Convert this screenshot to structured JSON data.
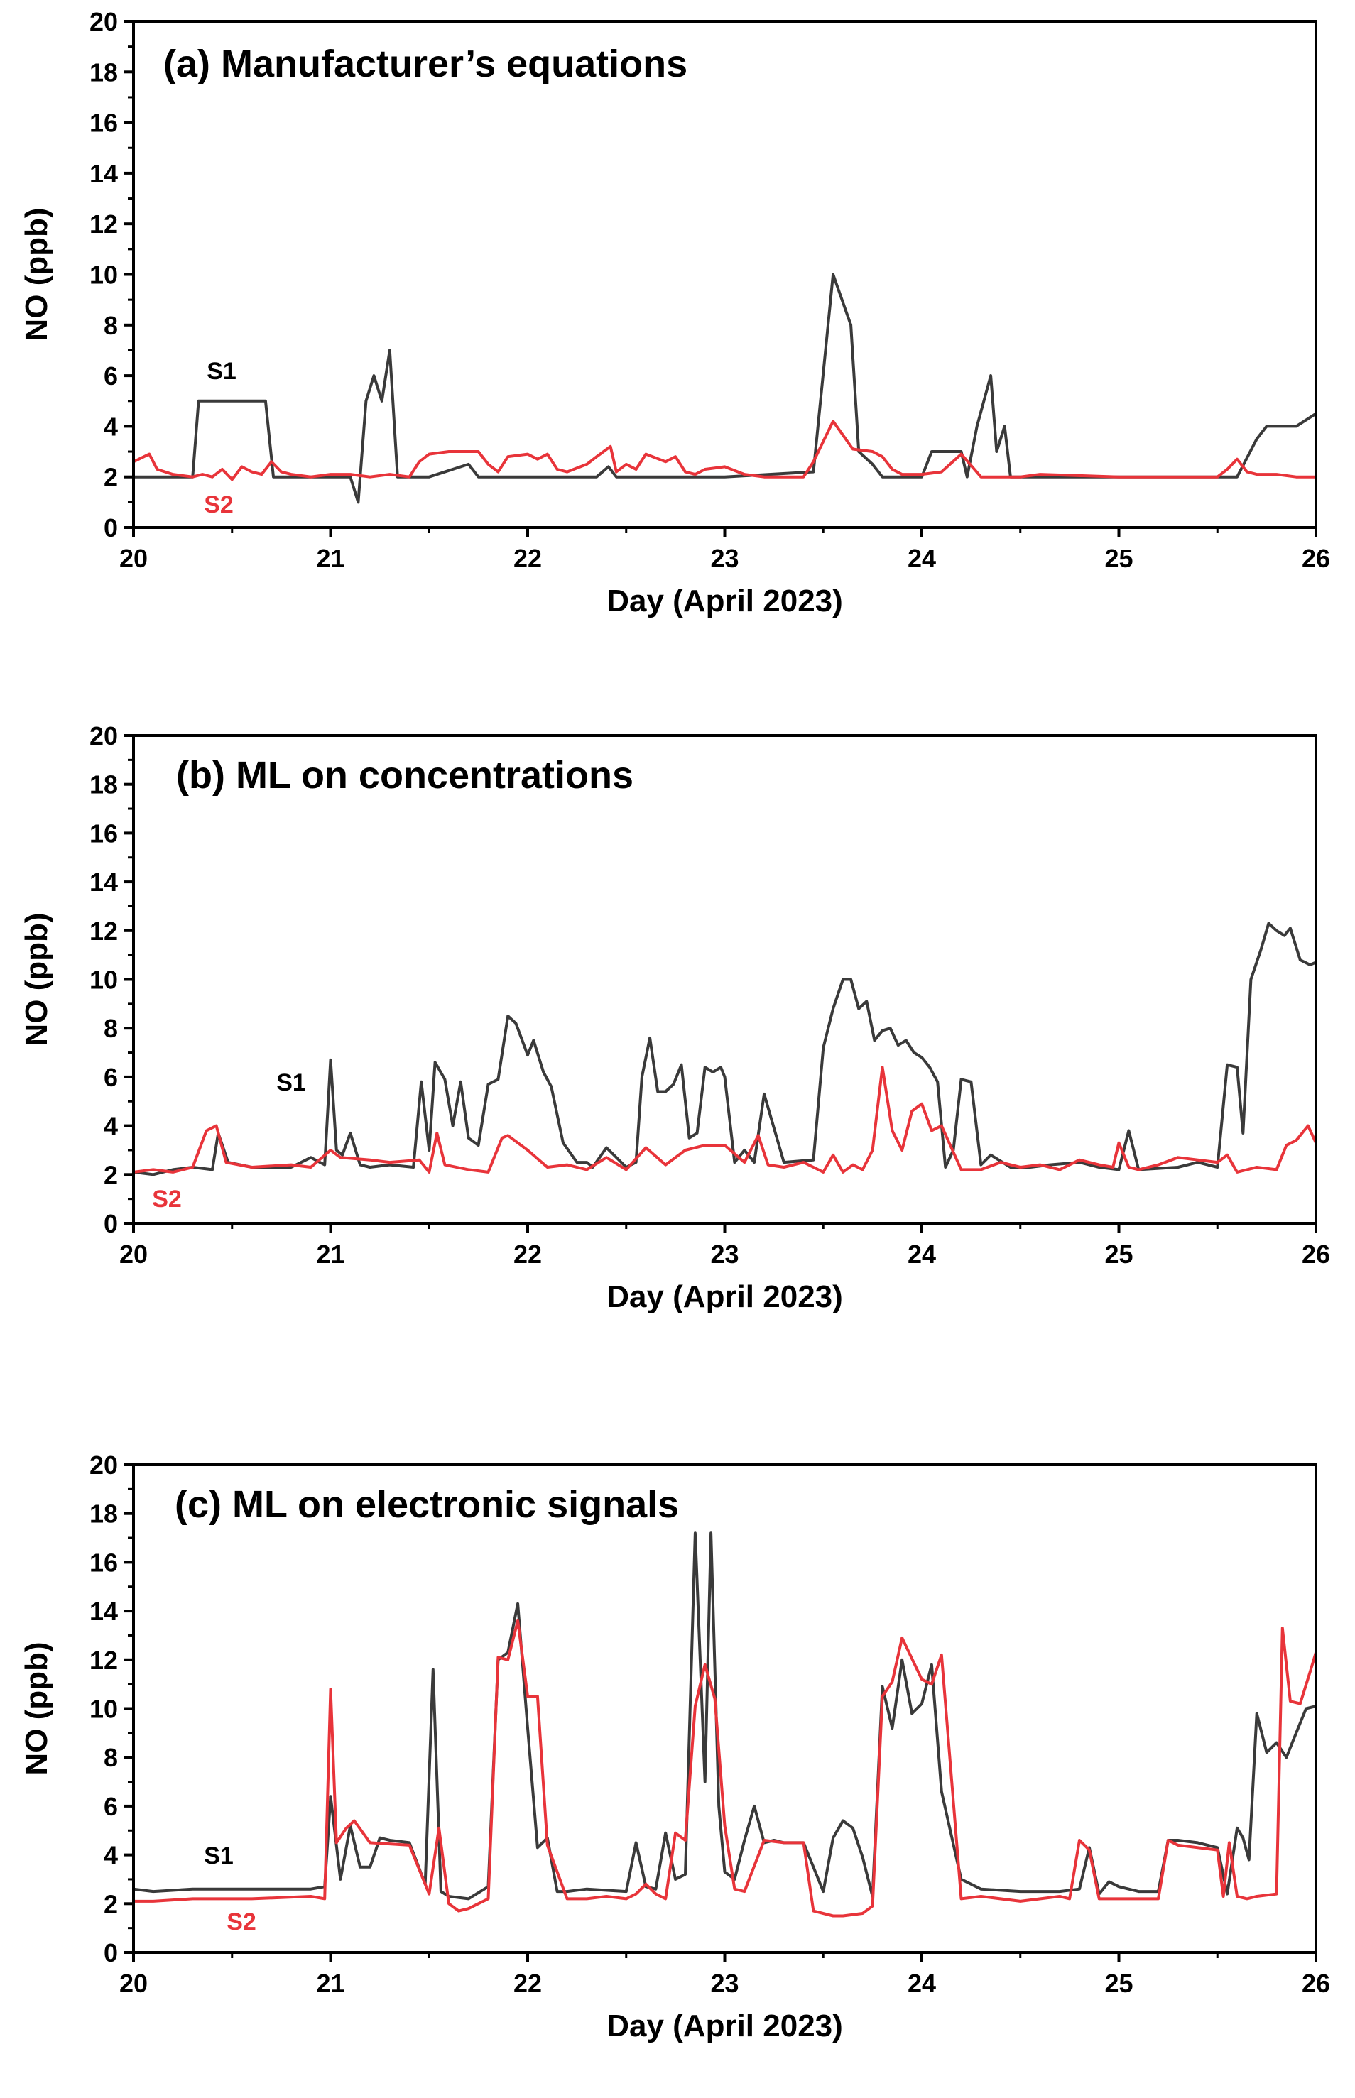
{
  "colors": {
    "s1": "#3a3a3a",
    "s2": "#e8343a"
  },
  "chart_data": [
    {
      "type": "line",
      "title": "(a) Manufacturer’s equations",
      "xlabel": "Day (April 2023)",
      "ylabel": "NO (ppb)",
      "xlim": [
        20,
        26
      ],
      "ylim": [
        0,
        20
      ],
      "xticks": [
        "20",
        "21",
        "22",
        "23",
        "24",
        "25",
        "26"
      ],
      "yticks": [
        "0",
        "2",
        "4",
        "6",
        "8",
        "10",
        "12",
        "14",
        "16",
        "18",
        "20"
      ],
      "series": [
        {
          "name": "S1",
          "x": [
            20,
            20.3,
            20.33,
            20.67,
            20.71,
            21.0,
            21.1,
            21.14,
            21.18,
            21.22,
            21.26,
            21.3,
            21.34,
            21.5,
            21.7,
            21.75,
            22.0,
            22.35,
            22.41,
            22.45,
            23.0,
            23.45,
            23.55,
            23.64,
            23.68,
            23.75,
            23.8,
            24.0,
            24.05,
            24.2,
            24.23,
            24.28,
            24.35,
            24.38,
            24.42,
            24.45,
            25.0,
            25.6,
            25.7,
            25.75,
            25.9,
            26.0
          ],
          "y": [
            2,
            2,
            5,
            5,
            2,
            2,
            2,
            1,
            5,
            6,
            5,
            7,
            2,
            2,
            2.5,
            2,
            2,
            2,
            2.4,
            2,
            2,
            2.2,
            10,
            8,
            3,
            2.5,
            2,
            2,
            3,
            3,
            2,
            4,
            6,
            3,
            4,
            2,
            2,
            2,
            3.5,
            4,
            4,
            4.5
          ]
        },
        {
          "name": "S2",
          "x": [
            20,
            20.08,
            20.12,
            20.2,
            20.3,
            20.35,
            20.4,
            20.45,
            20.5,
            20.55,
            20.6,
            20.65,
            20.7,
            20.75,
            20.8,
            20.9,
            21.0,
            21.1,
            21.2,
            21.3,
            21.4,
            21.45,
            21.5,
            21.6,
            21.75,
            21.8,
            21.85,
            21.9,
            22.0,
            22.05,
            22.1,
            22.15,
            22.2,
            22.3,
            22.35,
            22.42,
            22.45,
            22.5,
            22.55,
            22.6,
            22.7,
            22.75,
            22.8,
            22.85,
            22.9,
            23.0,
            23.1,
            23.2,
            23.4,
            23.45,
            23.55,
            23.65,
            23.75,
            23.8,
            23.85,
            23.9,
            24.0,
            24.1,
            24.2,
            24.3,
            24.5,
            24.6,
            25.0,
            25.5,
            25.55,
            25.6,
            25.65,
            25.7,
            25.8,
            25.9,
            26.0
          ],
          "y": [
            2.6,
            2.9,
            2.3,
            2.1,
            2.0,
            2.1,
            2.0,
            2.3,
            1.9,
            2.4,
            2.2,
            2.1,
            2.6,
            2.2,
            2.1,
            2.0,
            2.1,
            2.1,
            2.0,
            2.1,
            2.0,
            2.6,
            2.9,
            3.0,
            3.0,
            2.5,
            2.2,
            2.8,
            2.9,
            2.7,
            2.9,
            2.3,
            2.2,
            2.5,
            2.8,
            3.2,
            2.2,
            2.5,
            2.3,
            2.9,
            2.6,
            2.8,
            2.2,
            2.1,
            2.3,
            2.4,
            2.1,
            2.0,
            2.0,
            2.6,
            4.2,
            3.1,
            3.0,
            2.8,
            2.3,
            2.1,
            2.1,
            2.2,
            2.9,
            2.0,
            2.0,
            2.1,
            2.0,
            2.0,
            2.3,
            2.7,
            2.2,
            2.1,
            2.1,
            2.0,
            2.0
          ]
        }
      ],
      "annotations": [
        "S1",
        "S2"
      ]
    },
    {
      "type": "line",
      "title": "(b) ML on concentrations",
      "xlabel": "Day (April 2023)",
      "ylabel": "NO (ppb)",
      "xlim": [
        20,
        26
      ],
      "ylim": [
        0,
        20
      ],
      "xticks": [
        "20",
        "21",
        "22",
        "23",
        "24",
        "25",
        "26"
      ],
      "yticks": [
        "0",
        "2",
        "4",
        "6",
        "8",
        "10",
        "12",
        "14",
        "16",
        "18",
        "20"
      ],
      "series": [
        {
          "name": "S1",
          "x": [
            20,
            20.1,
            20.2,
            20.3,
            20.4,
            20.43,
            20.48,
            20.6,
            20.8,
            20.9,
            20.97,
            21.0,
            21.03,
            21.06,
            21.1,
            21.15,
            21.2,
            21.3,
            21.42,
            21.46,
            21.5,
            21.53,
            21.58,
            21.62,
            21.66,
            21.7,
            21.75,
            21.8,
            21.85,
            21.9,
            21.94,
            22.0,
            22.03,
            22.08,
            22.12,
            22.18,
            22.25,
            22.3,
            22.33,
            22.4,
            22.5,
            22.55,
            22.58,
            22.62,
            22.66,
            22.7,
            22.74,
            22.78,
            22.82,
            22.86,
            22.9,
            22.94,
            22.98,
            23.0,
            23.05,
            23.1,
            23.15,
            23.2,
            23.3,
            23.45,
            23.5,
            23.55,
            23.6,
            23.64,
            23.68,
            23.72,
            23.76,
            23.8,
            23.84,
            23.88,
            23.92,
            23.96,
            24.0,
            24.04,
            24.08,
            24.12,
            24.16,
            24.2,
            24.25,
            24.3,
            24.35,
            24.45,
            24.55,
            24.65,
            24.8,
            24.9,
            25.0,
            25.05,
            25.1,
            25.3,
            25.4,
            25.5,
            25.55,
            25.6,
            25.63,
            25.67,
            25.72,
            25.76,
            25.8,
            25.84,
            25.87,
            25.92,
            25.97,
            26.0
          ],
          "y": [
            2.1,
            2.0,
            2.2,
            2.3,
            2.2,
            3.7,
            2.5,
            2.3,
            2.3,
            2.7,
            2.4,
            6.7,
            3.0,
            2.8,
            3.7,
            2.4,
            2.3,
            2.4,
            2.3,
            5.8,
            3.0,
            6.6,
            5.9,
            4.0,
            5.8,
            3.5,
            3.2,
            5.7,
            5.9,
            8.5,
            8.2,
            6.9,
            7.5,
            6.2,
            5.6,
            3.3,
            2.5,
            2.5,
            2.3,
            3.1,
            2.3,
            2.5,
            6.0,
            7.6,
            5.4,
            5.4,
            5.7,
            6.5,
            3.5,
            3.7,
            6.4,
            6.2,
            6.4,
            6.0,
            2.5,
            3.0,
            2.5,
            5.3,
            2.5,
            2.6,
            7.2,
            8.8,
            10.0,
            10.0,
            8.8,
            9.1,
            7.5,
            7.9,
            8.0,
            7.3,
            7.5,
            7.0,
            6.8,
            6.4,
            5.8,
            2.3,
            3.0,
            5.9,
            5.8,
            2.4,
            2.8,
            2.3,
            2.3,
            2.4,
            2.5,
            2.3,
            2.2,
            3.8,
            2.2,
            2.3,
            2.5,
            2.3,
            6.5,
            6.4,
            3.7,
            10.0,
            11.2,
            12.3,
            12.0,
            11.8,
            12.1,
            10.8,
            10.6,
            10.7
          ]
        },
        {
          "name": "S2",
          "x": [
            20,
            20.1,
            20.2,
            20.3,
            20.37,
            20.42,
            20.47,
            20.6,
            20.8,
            20.9,
            21.0,
            21.05,
            21.2,
            21.3,
            21.45,
            21.5,
            21.54,
            21.58,
            21.7,
            21.8,
            21.87,
            21.9,
            22.0,
            22.1,
            22.2,
            22.3,
            22.4,
            22.5,
            22.6,
            22.7,
            22.8,
            22.9,
            23.0,
            23.1,
            23.17,
            23.22,
            23.3,
            23.4,
            23.5,
            23.55,
            23.6,
            23.65,
            23.7,
            23.75,
            23.8,
            23.85,
            23.9,
            23.95,
            24.0,
            24.05,
            24.1,
            24.2,
            24.3,
            24.4,
            24.5,
            24.6,
            24.7,
            24.8,
            24.9,
            24.97,
            25.0,
            25.05,
            25.1,
            25.2,
            25.3,
            25.4,
            25.5,
            25.55,
            25.6,
            25.7,
            25.8,
            25.85,
            25.9,
            25.96,
            26.0
          ],
          "y": [
            2.1,
            2.2,
            2.1,
            2.3,
            3.8,
            4.0,
            2.5,
            2.3,
            2.4,
            2.3,
            3.0,
            2.7,
            2.6,
            2.5,
            2.6,
            2.1,
            3.7,
            2.4,
            2.2,
            2.1,
            3.5,
            3.6,
            3.0,
            2.3,
            2.4,
            2.2,
            2.7,
            2.2,
            3.1,
            2.4,
            3.0,
            3.2,
            3.2,
            2.5,
            3.6,
            2.4,
            2.3,
            2.5,
            2.1,
            2.8,
            2.1,
            2.4,
            2.2,
            3.0,
            6.4,
            3.8,
            3.0,
            4.6,
            4.9,
            3.8,
            4.0,
            2.2,
            2.2,
            2.5,
            2.3,
            2.4,
            2.2,
            2.6,
            2.4,
            2.3,
            3.3,
            2.3,
            2.2,
            2.4,
            2.7,
            2.6,
            2.5,
            2.8,
            2.1,
            2.3,
            2.2,
            3.2,
            3.4,
            4.0,
            3.3
          ]
        }
      ],
      "annotations": [
        "S1",
        "S2"
      ]
    },
    {
      "type": "line",
      "title": "(c) ML on electronic signals",
      "xlabel": "Day (April 2023)",
      "ylabel": "NO (ppb)",
      "xlim": [
        20,
        26
      ],
      "ylim": [
        0,
        20
      ],
      "xticks": [
        "20",
        "21",
        "22",
        "23",
        "24",
        "25",
        "26"
      ],
      "yticks": [
        "0",
        "2",
        "4",
        "6",
        "8",
        "10",
        "12",
        "14",
        "16",
        "18",
        "20"
      ],
      "series": [
        {
          "name": "S1",
          "x": [
            20,
            20.1,
            20.3,
            20.6,
            20.9,
            20.97,
            21.0,
            21.05,
            21.1,
            21.15,
            21.2,
            21.25,
            21.3,
            21.4,
            21.48,
            21.52,
            21.56,
            21.6,
            21.7,
            21.8,
            21.85,
            21.9,
            21.95,
            22.0,
            22.05,
            22.1,
            22.15,
            22.2,
            22.3,
            22.5,
            22.55,
            22.6,
            22.65,
            22.7,
            22.75,
            22.8,
            22.85,
            22.9,
            22.93,
            22.97,
            23.0,
            23.05,
            23.1,
            23.15,
            23.2,
            23.25,
            23.3,
            23.4,
            23.5,
            23.55,
            23.6,
            23.65,
            23.7,
            23.75,
            23.8,
            23.85,
            23.9,
            23.95,
            24.0,
            24.05,
            24.1,
            24.2,
            24.3,
            24.5,
            24.7,
            24.8,
            24.85,
            24.9,
            24.95,
            25.0,
            25.1,
            25.2,
            25.25,
            25.3,
            25.4,
            25.5,
            25.55,
            25.6,
            25.63,
            25.66,
            25.7,
            25.75,
            25.8,
            25.85,
            25.9,
            25.95,
            26.0
          ],
          "y": [
            2.6,
            2.5,
            2.6,
            2.6,
            2.6,
            2.7,
            6.4,
            3.0,
            5.2,
            3.5,
            3.5,
            4.7,
            4.6,
            4.5,
            2.8,
            11.6,
            2.5,
            2.3,
            2.2,
            2.7,
            12.0,
            12.3,
            14.3,
            9.2,
            4.3,
            4.7,
            2.5,
            2.5,
            2.6,
            2.5,
            4.5,
            2.7,
            2.6,
            4.9,
            3.0,
            3.2,
            17.2,
            7.0,
            17.2,
            6.0,
            3.3,
            3.0,
            4.6,
            6.0,
            4.5,
            4.6,
            4.5,
            4.5,
            2.5,
            4.7,
            5.4,
            5.1,
            3.9,
            2.3,
            10.9,
            9.2,
            12.0,
            9.8,
            10.2,
            11.8,
            6.6,
            3.0,
            2.6,
            2.5,
            2.5,
            2.6,
            4.3,
            2.4,
            2.9,
            2.7,
            2.5,
            2.5,
            4.6,
            4.6,
            4.5,
            4.3,
            2.4,
            5.1,
            4.7,
            3.8,
            9.8,
            8.2,
            8.6,
            8.0,
            9.0,
            10.0,
            10.1
          ]
        },
        {
          "name": "S2",
          "x": [
            20,
            20.1,
            20.3,
            20.6,
            20.9,
            20.97,
            21.0,
            21.03,
            21.08,
            21.12,
            21.2,
            21.4,
            21.5,
            21.55,
            21.6,
            21.65,
            21.7,
            21.8,
            21.85,
            21.9,
            21.95,
            22.0,
            22.05,
            22.1,
            22.2,
            22.3,
            22.4,
            22.5,
            22.55,
            22.6,
            22.65,
            22.7,
            22.75,
            22.8,
            22.85,
            22.9,
            22.95,
            23.0,
            23.05,
            23.1,
            23.2,
            23.3,
            23.4,
            23.45,
            23.55,
            23.6,
            23.7,
            23.75,
            23.8,
            23.85,
            23.9,
            24.0,
            24.05,
            24.1,
            24.2,
            24.3,
            24.5,
            24.7,
            24.75,
            24.8,
            24.85,
            24.9,
            25.0,
            25.2,
            25.25,
            25.3,
            25.5,
            25.53,
            25.56,
            25.6,
            25.65,
            25.7,
            25.8,
            25.83,
            25.87,
            25.92,
            25.97,
            26.0
          ],
          "y": [
            2.1,
            2.1,
            2.2,
            2.2,
            2.3,
            2.2,
            10.8,
            4.5,
            5.1,
            5.4,
            4.5,
            4.4,
            2.4,
            5.1,
            2.0,
            1.7,
            1.8,
            2.2,
            12.1,
            12.0,
            13.6,
            10.5,
            10.5,
            4.4,
            2.2,
            2.2,
            2.3,
            2.2,
            2.4,
            2.8,
            2.4,
            2.2,
            4.9,
            4.6,
            10.1,
            11.8,
            10.4,
            5.2,
            2.6,
            2.5,
            4.6,
            4.5,
            4.5,
            1.7,
            1.5,
            1.5,
            1.6,
            1.9,
            10.5,
            11.1,
            12.9,
            11.2,
            11.0,
            12.2,
            2.2,
            2.3,
            2.1,
            2.3,
            2.2,
            4.6,
            4.2,
            2.2,
            2.2,
            2.2,
            4.6,
            4.4,
            4.2,
            2.3,
            4.5,
            2.3,
            2.2,
            2.3,
            2.4,
            13.3,
            10.3,
            10.2,
            11.5,
            12.3
          ]
        }
      ],
      "annotations": [
        "S1",
        "S2"
      ]
    }
  ]
}
